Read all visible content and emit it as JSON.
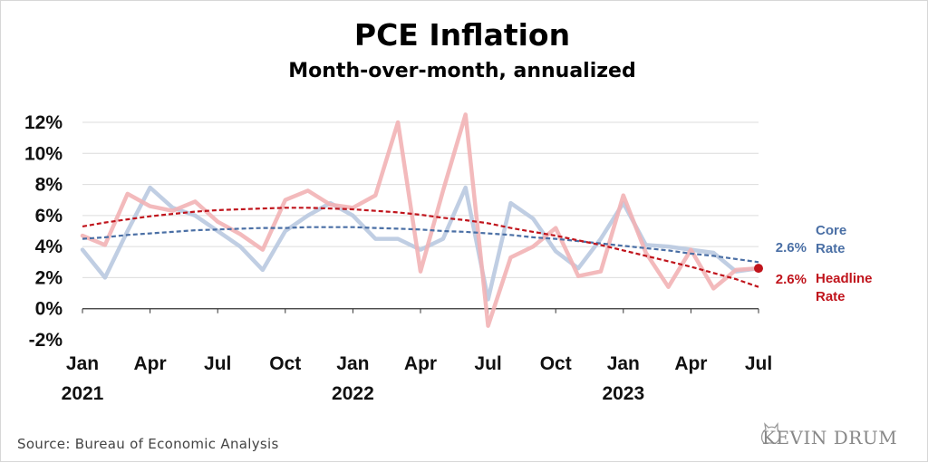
{
  "chart_data": {
    "type": "line",
    "title": "PCE Inflation",
    "subtitle": "Month-over-month, annualized",
    "y_ticks": [
      "12%",
      "10%",
      "8%",
      "6%",
      "4%",
      "2%",
      "0%",
      "-2%"
    ],
    "ylim": [
      -2,
      12
    ],
    "x_tick_labels": [
      "Jan",
      "Apr",
      "Jul",
      "Oct",
      "Jan",
      "Apr",
      "Jul",
      "Oct",
      "Jan",
      "Apr",
      "Jul"
    ],
    "x_year_labels": [
      "2021",
      "2022",
      "2023"
    ],
    "x": [
      "2021-01",
      "2021-02",
      "2021-03",
      "2021-04",
      "2021-05",
      "2021-06",
      "2021-07",
      "2021-08",
      "2021-09",
      "2021-10",
      "2021-11",
      "2021-12",
      "2022-01",
      "2022-02",
      "2022-03",
      "2022-04",
      "2022-05",
      "2022-06",
      "2022-07",
      "2022-08",
      "2022-09",
      "2022-10",
      "2022-11",
      "2022-12",
      "2023-01",
      "2023-02",
      "2023-03",
      "2023-04",
      "2023-05",
      "2023-06",
      "2023-07"
    ],
    "series": [
      {
        "name": "Core Rate",
        "color": "#b9c9e0",
        "values": [
          3.8,
          2.0,
          5.0,
          7.8,
          6.5,
          6.0,
          5.0,
          4.0,
          2.5,
          5.0,
          6.0,
          6.8,
          6.0,
          4.5,
          4.5,
          3.8,
          4.5,
          7.8,
          0.6,
          6.8,
          5.8,
          3.7,
          2.6,
          4.5,
          6.8,
          4.1,
          4.0,
          3.8,
          3.6,
          2.4,
          2.6
        ]
      },
      {
        "name": "Headline Rate",
        "color": "#f2b3b5",
        "values": [
          4.7,
          4.1,
          7.4,
          6.6,
          6.3,
          6.9,
          5.6,
          4.8,
          3.8,
          7.0,
          7.6,
          6.7,
          6.5,
          7.3,
          12.0,
          2.4,
          7.6,
          12.5,
          -1.1,
          3.3,
          4.0,
          5.2,
          2.1,
          2.4,
          7.3,
          3.6,
          1.4,
          3.8,
          1.3,
          2.5,
          2.6
        ]
      }
    ],
    "trendlines": [
      {
        "name": "Core trend",
        "color": "#4a6fa5",
        "values": [
          4.5,
          4.6,
          4.75,
          4.85,
          4.95,
          5.05,
          5.1,
          5.15,
          5.2,
          5.2,
          5.25,
          5.25,
          5.25,
          5.2,
          5.15,
          5.1,
          5.0,
          4.95,
          4.85,
          4.75,
          4.6,
          4.5,
          4.35,
          4.2,
          4.05,
          3.9,
          3.75,
          3.55,
          3.4,
          3.2,
          3.0
        ]
      },
      {
        "name": "Headline trend",
        "color": "#c0141c",
        "values": [
          5.3,
          5.55,
          5.75,
          5.95,
          6.1,
          6.25,
          6.35,
          6.4,
          6.45,
          6.5,
          6.5,
          6.45,
          6.4,
          6.3,
          6.2,
          6.05,
          5.85,
          5.7,
          5.5,
          5.2,
          4.95,
          4.7,
          4.4,
          4.1,
          3.75,
          3.4,
          3.05,
          2.7,
          2.3,
          1.9,
          1.4
        ]
      }
    ],
    "end_labels": [
      {
        "value_text": "2.6%",
        "name_lines": [
          "Core",
          "Rate"
        ],
        "color": "#4a6fa5"
      },
      {
        "value_text": "2.6%",
        "name_lines": [
          "Headline",
          "Rate"
        ],
        "color": "#c0141c"
      }
    ],
    "end_marker": {
      "value": 2.6,
      "color": "#c0141c"
    },
    "grid": true,
    "legend": "right"
  },
  "footer": {
    "source": "Source: Bureau of Economic Analysis",
    "brand": "KEVIN DRUM"
  }
}
